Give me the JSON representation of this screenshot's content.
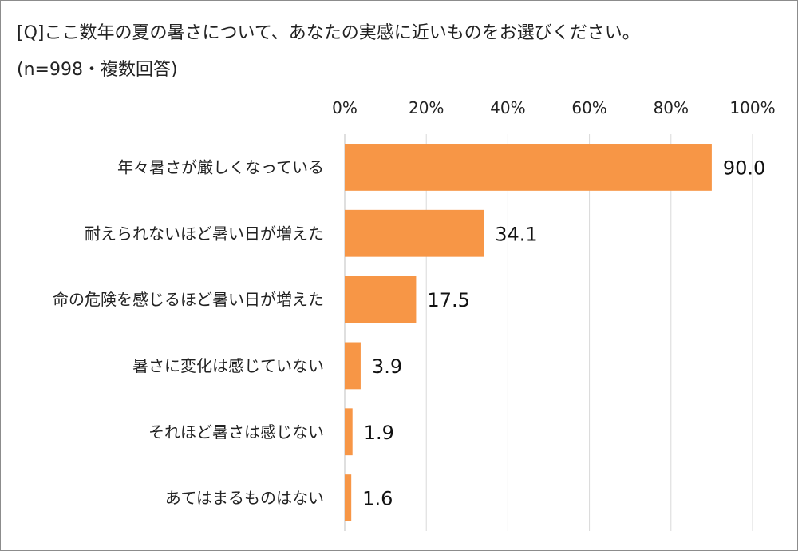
{
  "chart_data": {
    "type": "bar",
    "orientation": "horizontal",
    "title": "[Q]ここ数年の夏の暑さについて、あなたの実感に近いものをお選びください。",
    "subtitle": "(n=998・複数回答)",
    "categories": [
      "年々暑さが厳しくなっている",
      "耐えられないほど暑い日が増えた",
      "命の危険を感じるほど暑い日が増えた",
      "暑さに変化は感じていない",
      "それほど暑さは感じない",
      "あてはまるものはない"
    ],
    "values": [
      90.0,
      34.1,
      17.5,
      3.9,
      1.9,
      1.6
    ],
    "data_labels": [
      "90.0",
      "34.1",
      "17.5",
      "3.9",
      "1.9",
      "1.6"
    ],
    "xlim": [
      0,
      100
    ],
    "x_ticks": [
      "0%",
      "20%",
      "40%",
      "60%",
      "80%",
      "100%"
    ],
    "x_tick_values": [
      0,
      20,
      40,
      60,
      80,
      100
    ],
    "xaxis_position": "top",
    "grid": true,
    "bar_color": "#f79646",
    "grid_color": "#d9d9d9"
  }
}
